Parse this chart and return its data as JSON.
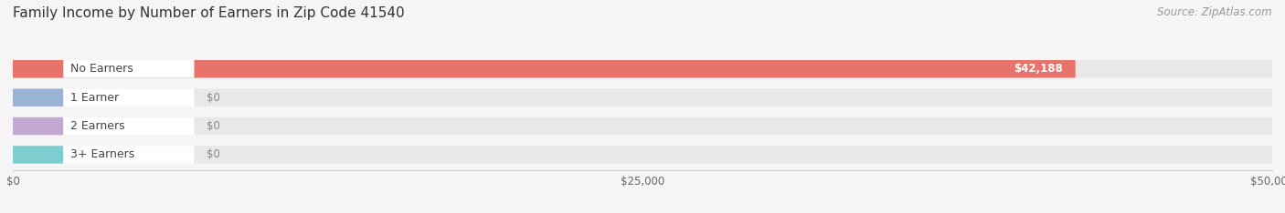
{
  "title": "Family Income by Number of Earners in Zip Code 41540",
  "source": "Source: ZipAtlas.com",
  "categories": [
    "No Earners",
    "1 Earner",
    "2 Earners",
    "3+ Earners"
  ],
  "values": [
    42188,
    0,
    0,
    0
  ],
  "bar_colors": [
    "#e8736b",
    "#9ab3d5",
    "#c4a8d4",
    "#7dcfcf"
  ],
  "xlim": [
    0,
    50000
  ],
  "xticks": [
    0,
    25000,
    50000
  ],
  "xtick_labels": [
    "$0",
    "$25,000",
    "$50,000"
  ],
  "value_labels": [
    "$42,188",
    "$0",
    "$0",
    "$0"
  ],
  "background_color": "#f5f5f5",
  "bar_background": "#e8e8e8",
  "title_fontsize": 11,
  "source_fontsize": 8.5,
  "label_fontsize": 9,
  "value_fontsize": 8.5
}
